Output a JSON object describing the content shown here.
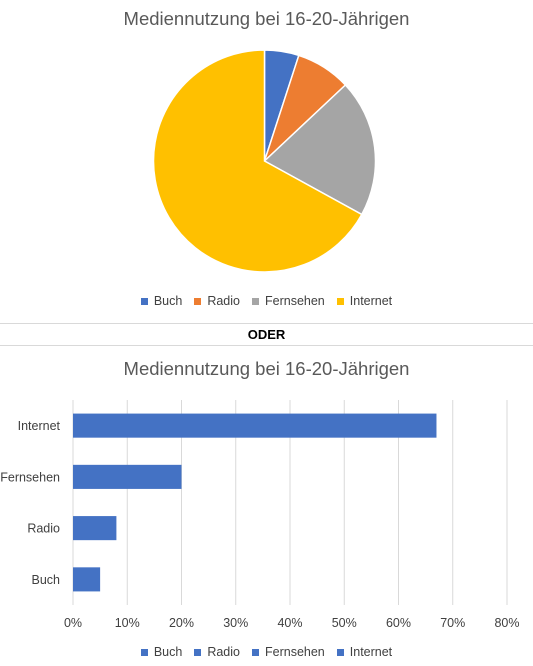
{
  "chart_data": [
    {
      "type": "pie",
      "title": "Mediennutzung bei 16-20-Jährigen",
      "categories": [
        "Buch",
        "Radio",
        "Fernsehen",
        "Internet"
      ],
      "values": [
        5,
        8,
        20,
        67
      ],
      "colors": [
        "#4472c4",
        "#ed7d31",
        "#a5a5a5",
        "#ffc000"
      ],
      "legend": "bottom"
    },
    {
      "type": "bar",
      "orientation": "horizontal",
      "title": "Mediennutzung bei 16-20-Jährigen",
      "categories": [
        "Buch",
        "Radio",
        "Fernsehen",
        "Internet"
      ],
      "values": [
        0.05,
        0.08,
        0.2,
        0.67
      ],
      "color": "#4472c4",
      "xlim": [
        0,
        0.8
      ],
      "xticks": [
        "0%",
        "10%",
        "20%",
        "30%",
        "40%",
        "50%",
        "60%",
        "70%",
        "80%"
      ],
      "grid": true,
      "legend": "bottom"
    }
  ],
  "separator_text": "ODER"
}
